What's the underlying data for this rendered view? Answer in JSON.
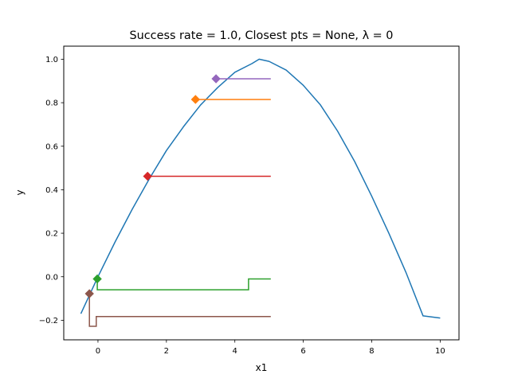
{
  "chart_data": {
    "type": "line",
    "title": "Success rate = 1.0, Closest pts = None, λ = 0",
    "xlabel": "x1",
    "ylabel": "y",
    "xlim": [
      -1.0,
      10.55
    ],
    "ylim": [
      -0.29,
      1.06
    ],
    "xticks": [
      0,
      2,
      4,
      6,
      8,
      10
    ],
    "yticks": [
      -0.2,
      0.0,
      0.2,
      0.4,
      0.6,
      0.8,
      1.0
    ],
    "xtick_labels": [
      "0",
      "2",
      "4",
      "6",
      "8",
      "10"
    ],
    "ytick_labels": [
      "−0.2",
      "0.0",
      "0.2",
      "0.4",
      "0.6",
      "0.8",
      "1.0"
    ],
    "grid": false,
    "legend": "none",
    "curve": {
      "color": "#1f77b4",
      "x": [
        -0.5,
        0.0,
        0.5,
        1.0,
        1.5,
        2.0,
        2.5,
        3.0,
        3.5,
        4.0,
        4.5,
        4.71,
        5.0,
        5.5,
        6.0,
        6.5,
        7.0,
        7.5,
        8.0,
        8.5,
        9.0,
        9.5,
        10.0
      ],
      "y": [
        -0.17,
        0.0,
        0.16,
        0.31,
        0.45,
        0.58,
        0.69,
        0.79,
        0.87,
        0.94,
        0.98,
        1.0,
        0.99,
        0.95,
        0.88,
        0.79,
        0.67,
        0.53,
        0.37,
        0.2,
        0.02,
        -0.18,
        -0.19
      ]
    },
    "series": [
      {
        "color": "#9467bd",
        "marker": [
          3.45,
          0.91
        ],
        "path": [
          [
            3.45,
            0.91
          ],
          [
            5.05,
            0.91
          ]
        ]
      },
      {
        "color": "#ff7f0e",
        "marker": [
          2.85,
          0.815
        ],
        "path": [
          [
            2.85,
            0.815
          ],
          [
            5.05,
            0.815
          ]
        ]
      },
      {
        "color": "#d62728",
        "marker": [
          1.45,
          0.462
        ],
        "path": [
          [
            1.45,
            0.462
          ],
          [
            5.05,
            0.462
          ]
        ]
      },
      {
        "color": "#2ca02c",
        "marker": [
          -0.02,
          -0.01
        ],
        "path": [
          [
            -0.02,
            -0.01
          ],
          [
            -0.02,
            -0.06
          ],
          [
            4.4,
            -0.06
          ],
          [
            4.4,
            -0.01
          ],
          [
            5.05,
            -0.01
          ]
        ]
      },
      {
        "color": "#8c564b",
        "marker": [
          -0.25,
          -0.078
        ],
        "path": [
          [
            -0.25,
            -0.078
          ],
          [
            -0.25,
            -0.228
          ],
          [
            -0.05,
            -0.228
          ],
          [
            -0.05,
            -0.183
          ],
          [
            5.05,
            -0.183
          ]
        ]
      }
    ]
  }
}
